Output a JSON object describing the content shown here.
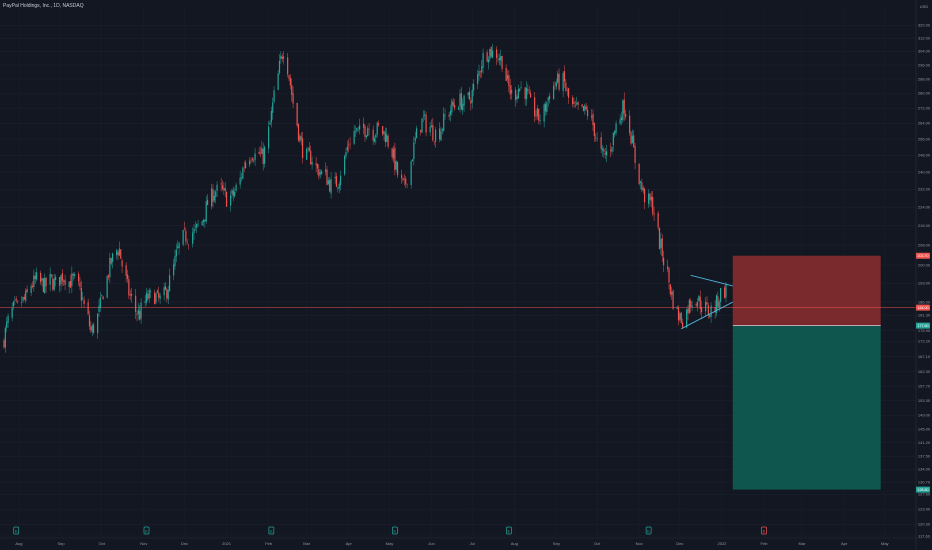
{
  "symbol_title": "PayPal Holdings, Inc., 1D, NASDAQ",
  "currency": "USD",
  "colors": {
    "background": "#131722",
    "up": "#26a69a",
    "down": "#ef5350",
    "stop_zone": "#7f2a2d",
    "target_zone": "#0f5a51",
    "price_line": "#ef5350",
    "trendline": "#4fb3d9",
    "axis_text": "#9598a1"
  },
  "chart_data": {
    "type": "candlestick",
    "title": "PayPal Holdings, Inc., 1D, NASDAQ",
    "y_scale": "log",
    "ylim": [
      117.6,
      331.0
    ],
    "y_ticks": [
      117.6,
      120.3,
      123.9,
      127.6,
      130.7,
      134.0,
      137.5,
      141.2,
      145.0,
      149.0,
      153.3,
      157.7,
      162.3,
      167.1,
      172.2,
      175.9,
      181.3,
      186.0,
      193.0,
      200.0,
      208.0,
      216.0,
      224.0,
      232.0,
      240.0,
      248.0,
      256.0,
      264.0,
      272.0,
      280.0,
      288.0,
      296.0,
      304.0,
      312.0,
      320.0
    ],
    "y_tick_labels": [
      "117.60",
      "120.30",
      "123.90",
      "127.60",
      "130.70",
      "134.00",
      "137.50",
      "141.20",
      "145.00",
      "149.00",
      "153.30",
      "157.70",
      "162.30",
      "167.10",
      "172.20",
      "175.90",
      "181.30",
      "186.00",
      "193.00",
      "200.00",
      "208.00",
      "216.00",
      "224.00",
      "232.00",
      "240.00",
      "248.00",
      "256.00",
      "264.00",
      "272.00",
      "280.00",
      "288.00",
      "296.00",
      "304.00",
      "312.00",
      "320.00"
    ],
    "x_labels": [
      "Aug",
      "Sep",
      "Oct",
      "Nov",
      "Dec",
      "2021",
      "Feb",
      "Mar",
      "Apr",
      "May",
      "Jun",
      "Jul",
      "Aug",
      "Sep",
      "Oct",
      "Nov",
      "Dec",
      "2022",
      "Feb",
      "Mar",
      "Apr",
      "May"
    ],
    "anchors": [
      [
        "2020-07-21",
        172
      ],
      [
        "2020-08-10",
        196
      ],
      [
        "2020-08-20",
        188
      ],
      [
        "2020-09-02",
        200
      ],
      [
        "2020-09-23",
        178
      ],
      [
        "2020-10-14",
        205
      ],
      [
        "2020-10-29",
        180
      ],
      [
        "2020-11-20",
        195
      ],
      [
        "2020-12-11",
        220
      ],
      [
        "2021-01-08",
        235
      ],
      [
        "2021-01-28",
        252
      ],
      [
        "2021-02-12",
        300
      ],
      [
        "2021-02-26",
        255
      ],
      [
        "2021-03-09",
        236
      ],
      [
        "2021-03-25",
        240
      ],
      [
        "2021-04-15",
        268
      ],
      [
        "2021-05-12",
        237
      ],
      [
        "2021-05-26",
        262
      ],
      [
        "2021-06-18",
        268
      ],
      [
        "2021-07-08",
        295
      ],
      [
        "2021-07-23",
        305
      ],
      [
        "2021-07-30",
        280
      ],
      [
        "2021-08-20",
        272
      ],
      [
        "2021-09-07",
        285
      ],
      [
        "2021-09-20",
        270
      ],
      [
        "2021-10-04",
        250
      ],
      [
        "2021-10-21",
        268
      ],
      [
        "2021-11-05",
        232
      ],
      [
        "2021-11-10",
        225
      ],
      [
        "2021-11-16",
        205
      ],
      [
        "2021-12-03",
        180
      ],
      [
        "2021-12-17",
        186
      ],
      [
        "2022-01-04",
        187
      ]
    ],
    "date_start": "2020-07-21",
    "date_end": "2022-01-04",
    "price_line": 184.0,
    "price_label": "184.00",
    "position_tool": {
      "type": "short",
      "stop_price": 203.7,
      "stop_label": "203.70",
      "entry_price": 177.6,
      "entry_label": "177.60",
      "target_price": 128.8,
      "target_label": "128.80",
      "start": "2022-01-09",
      "end": "2022-04-28"
    },
    "triangle": {
      "top_line": [
        [
          "2021-12-09",
          196
        ],
        [
          "2022-01-09",
          192
        ]
      ],
      "bottom_line": [
        [
          "2021-12-02",
          176.5
        ],
        [
          "2022-01-09",
          186
        ]
      ]
    },
    "event_markers": [
      {
        "date": "2020-07-30",
        "label": "E",
        "color": "#26a69a"
      },
      {
        "date": "2020-11-03",
        "label": "E",
        "color": "#26a69a"
      },
      {
        "date": "2021-02-03",
        "label": "E",
        "color": "#26a69a"
      },
      {
        "date": "2021-05-05",
        "label": "E",
        "color": "#26a69a"
      },
      {
        "date": "2021-07-28",
        "label": "E",
        "color": "#26a69a"
      },
      {
        "date": "2021-11-08",
        "label": "E",
        "color": "#26a69a"
      },
      {
        "date": "2022-02-01",
        "label": "E",
        "color": "#ef5350"
      }
    ]
  }
}
